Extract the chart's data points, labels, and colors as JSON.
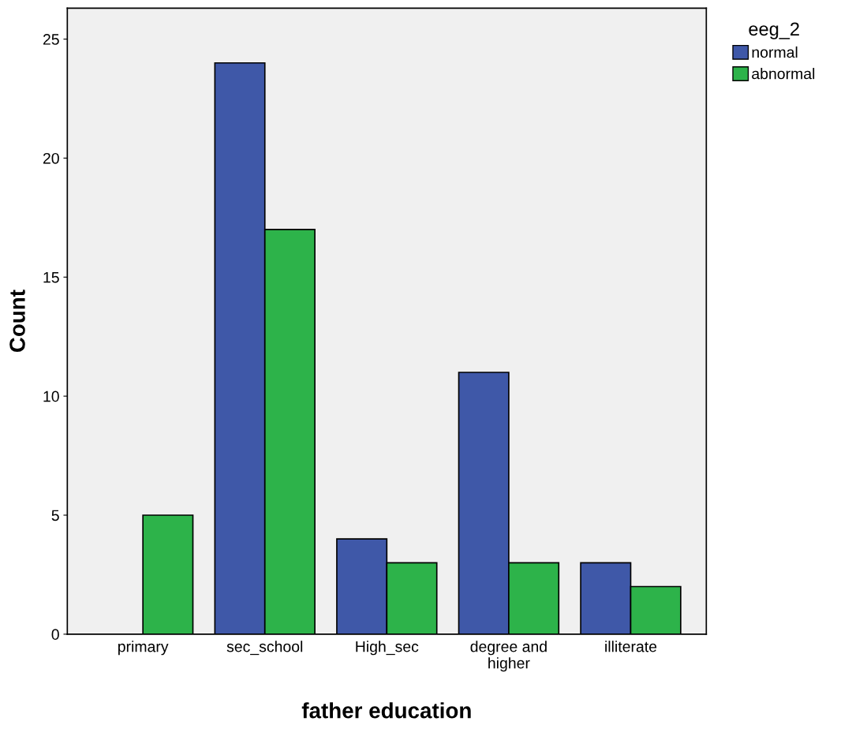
{
  "chart_data": {
    "type": "bar",
    "xlabel": "father education",
    "ylabel": "Count",
    "legend_title": "eeg_2",
    "categories": [
      "primary",
      "sec_school",
      "High_sec",
      "degree and\nhigher",
      "illiterate"
    ],
    "series": [
      {
        "name": "normal",
        "color": "#3f58a8",
        "values": [
          0,
          24,
          4,
          11,
          3
        ]
      },
      {
        "name": "abnormal",
        "color": "#2db34a",
        "values": [
          5,
          17,
          3,
          3,
          2
        ]
      }
    ],
    "ylim": [
      0,
      26.3
    ],
    "yticks": [
      0,
      5,
      10,
      15,
      20,
      25
    ],
    "grid": false,
    "legend": "top right"
  }
}
